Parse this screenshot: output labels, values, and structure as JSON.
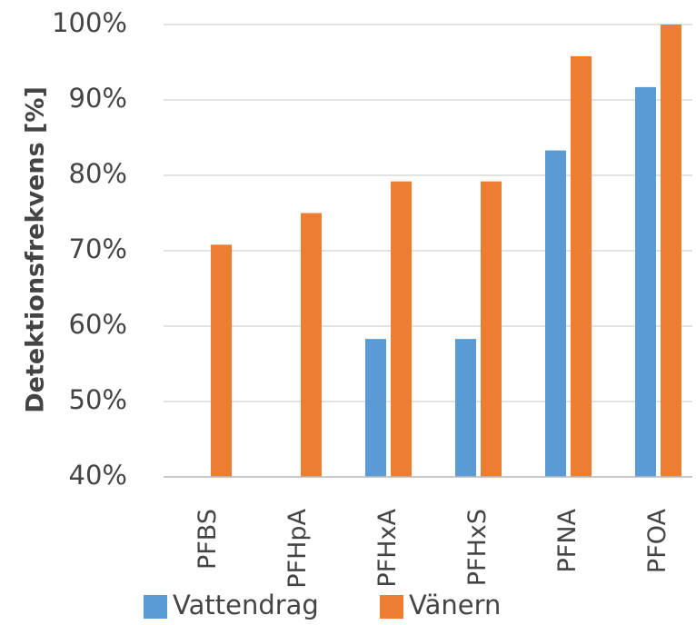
{
  "chart_data": {
    "type": "bar",
    "y_label": "Detektionsfrekvens [%]",
    "categories": [
      "PFBS",
      "PFHpA",
      "PFHxA",
      "PFHxS",
      "PFNA",
      "PFOA"
    ],
    "series": [
      {
        "name": "Vattendrag",
        "color": "#5b9bd5",
        "values": [
          null,
          null,
          58.3,
          58.3,
          83.3,
          91.7
        ]
      },
      {
        "name": "Vänern",
        "color": "#ed7d31",
        "values": [
          70.8,
          75,
          79.2,
          79.2,
          95.8,
          100
        ]
      }
    ],
    "ylim": [
      40,
      100
    ],
    "yticks": [
      {
        "value": 40,
        "label": "40%"
      },
      {
        "value": 50,
        "label": "50%"
      },
      {
        "value": 60,
        "label": "60%"
      },
      {
        "value": 70,
        "label": "70%"
      },
      {
        "value": 80,
        "label": "80%"
      },
      {
        "value": 90,
        "label": "90%"
      },
      {
        "value": 100,
        "label": "100%"
      }
    ],
    "grid": true
  }
}
